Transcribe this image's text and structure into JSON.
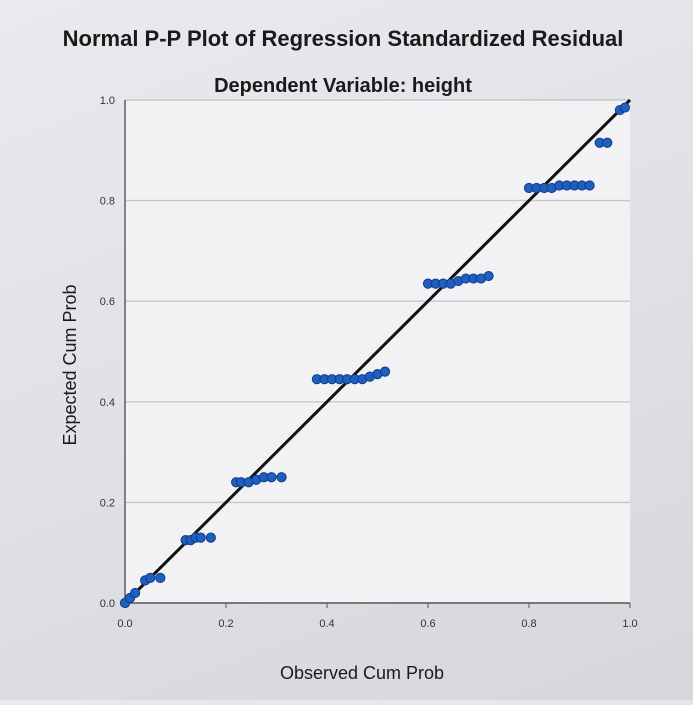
{
  "chart_data": {
    "type": "scatter",
    "title": "Normal P-P Plot of Regression Standardized Residual",
    "subtitle": "Dependent Variable: height",
    "xlabel": "Observed Cum Prob",
    "ylabel": "Expected Cum Prob",
    "xlim": [
      0,
      1
    ],
    "ylim": [
      0,
      1
    ],
    "x_ticks": [
      "0.0",
      "0.2",
      "0.4",
      "0.6",
      "0.8",
      "1.0"
    ],
    "y_ticks": [
      "0.0",
      "0.2",
      "0.4",
      "0.6",
      "0.8",
      "1.0"
    ],
    "grid": "horizontal",
    "reference_line": [
      [
        0,
        0
      ],
      [
        1,
        1
      ]
    ],
    "colors": {
      "points": "#1f5fbf",
      "point_edge": "#0d3d8a",
      "line": "#111111",
      "grid": "#c8c8c8"
    },
    "points": [
      {
        "x": 0.0,
        "y": 0.0
      },
      {
        "x": 0.01,
        "y": 0.01
      },
      {
        "x": 0.02,
        "y": 0.02
      },
      {
        "x": 0.04,
        "y": 0.045
      },
      {
        "x": 0.05,
        "y": 0.05
      },
      {
        "x": 0.07,
        "y": 0.05
      },
      {
        "x": 0.12,
        "y": 0.125
      },
      {
        "x": 0.13,
        "y": 0.125
      },
      {
        "x": 0.14,
        "y": 0.13
      },
      {
        "x": 0.15,
        "y": 0.13
      },
      {
        "x": 0.17,
        "y": 0.13
      },
      {
        "x": 0.22,
        "y": 0.24
      },
      {
        "x": 0.23,
        "y": 0.24
      },
      {
        "x": 0.245,
        "y": 0.24
      },
      {
        "x": 0.26,
        "y": 0.245
      },
      {
        "x": 0.275,
        "y": 0.25
      },
      {
        "x": 0.29,
        "y": 0.25
      },
      {
        "x": 0.31,
        "y": 0.25
      },
      {
        "x": 0.38,
        "y": 0.445
      },
      {
        "x": 0.395,
        "y": 0.445
      },
      {
        "x": 0.41,
        "y": 0.445
      },
      {
        "x": 0.425,
        "y": 0.445
      },
      {
        "x": 0.44,
        "y": 0.445
      },
      {
        "x": 0.455,
        "y": 0.445
      },
      {
        "x": 0.47,
        "y": 0.445
      },
      {
        "x": 0.485,
        "y": 0.45
      },
      {
        "x": 0.5,
        "y": 0.455
      },
      {
        "x": 0.515,
        "y": 0.46
      },
      {
        "x": 0.6,
        "y": 0.635
      },
      {
        "x": 0.615,
        "y": 0.635
      },
      {
        "x": 0.63,
        "y": 0.635
      },
      {
        "x": 0.645,
        "y": 0.635
      },
      {
        "x": 0.66,
        "y": 0.64
      },
      {
        "x": 0.675,
        "y": 0.645
      },
      {
        "x": 0.69,
        "y": 0.645
      },
      {
        "x": 0.705,
        "y": 0.645
      },
      {
        "x": 0.72,
        "y": 0.65
      },
      {
        "x": 0.8,
        "y": 0.825
      },
      {
        "x": 0.815,
        "y": 0.825
      },
      {
        "x": 0.83,
        "y": 0.825
      },
      {
        "x": 0.845,
        "y": 0.825
      },
      {
        "x": 0.86,
        "y": 0.83
      },
      {
        "x": 0.875,
        "y": 0.83
      },
      {
        "x": 0.89,
        "y": 0.83
      },
      {
        "x": 0.905,
        "y": 0.83
      },
      {
        "x": 0.92,
        "y": 0.83
      },
      {
        "x": 0.94,
        "y": 0.915
      },
      {
        "x": 0.955,
        "y": 0.915
      },
      {
        "x": 0.98,
        "y": 0.98
      },
      {
        "x": 0.99,
        "y": 0.985
      }
    ]
  }
}
